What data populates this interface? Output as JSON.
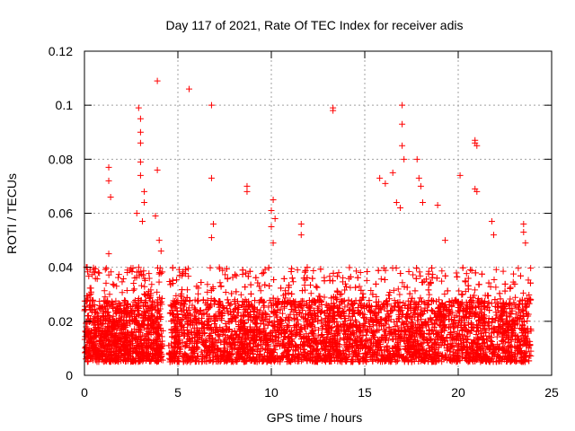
{
  "chart_data": {
    "type": "scatter",
    "title": "Day 117 of 2021, Rate Of TEC Index for receiver adis",
    "xlabel": "GPS time / hours",
    "ylabel": "ROTI / TECUs",
    "xlim": [
      0,
      25
    ],
    "ylim": [
      0,
      0.12
    ],
    "x_ticks": [
      0,
      5,
      10,
      15,
      20,
      25
    ],
    "x_tick_labels": [
      "0",
      "5",
      "10",
      "15",
      "20",
      "25"
    ],
    "y_ticks": [
      0,
      0.02,
      0.04,
      0.06,
      0.08,
      0.1,
      0.12
    ],
    "y_tick_labels": [
      "0",
      "0.02",
      "0.04",
      "0.06",
      "0.08",
      "0.1",
      "0.12"
    ],
    "grid": true,
    "marker": "+",
    "marker_color": "#ff0000",
    "series": [
      {
        "name": "ROTI",
        "note": "dense cloud of ~thousands of points; representative extreme/outlier points listed",
        "points": [
          [
            0.1,
            0.04
          ],
          [
            0.3,
            0.039
          ],
          [
            1.3,
            0.077
          ],
          [
            1.3,
            0.072
          ],
          [
            1.4,
            0.066
          ],
          [
            1.3,
            0.045
          ],
          [
            2.9,
            0.099
          ],
          [
            3.0,
            0.095
          ],
          [
            3.0,
            0.09
          ],
          [
            3.0,
            0.086
          ],
          [
            3.0,
            0.079
          ],
          [
            3.0,
            0.074
          ],
          [
            2.8,
            0.06
          ],
          [
            3.1,
            0.057
          ],
          [
            3.2,
            0.068
          ],
          [
            3.2,
            0.064
          ],
          [
            3.9,
            0.109
          ],
          [
            3.9,
            0.076
          ],
          [
            3.8,
            0.059
          ],
          [
            4.0,
            0.05
          ],
          [
            4.1,
            0.046
          ],
          [
            5.6,
            0.106
          ],
          [
            6.8,
            0.1
          ],
          [
            6.8,
            0.073
          ],
          [
            6.9,
            0.056
          ],
          [
            6.8,
            0.051
          ],
          [
            8.7,
            0.07
          ],
          [
            8.7,
            0.068
          ],
          [
            10.1,
            0.065
          ],
          [
            10.0,
            0.061
          ],
          [
            10.2,
            0.058
          ],
          [
            10.0,
            0.055
          ],
          [
            10.1,
            0.049
          ],
          [
            11.6,
            0.056
          ],
          [
            11.6,
            0.052
          ],
          [
            13.3,
            0.099
          ],
          [
            13.3,
            0.098
          ],
          [
            15.8,
            0.073
          ],
          [
            16.1,
            0.071
          ],
          [
            16.5,
            0.075
          ],
          [
            16.7,
            0.064
          ],
          [
            16.9,
            0.062
          ],
          [
            17.0,
            0.1
          ],
          [
            17.0,
            0.093
          ],
          [
            17.0,
            0.085
          ],
          [
            17.1,
            0.08
          ],
          [
            17.8,
            0.08
          ],
          [
            17.9,
            0.073
          ],
          [
            18.0,
            0.07
          ],
          [
            18.1,
            0.064
          ],
          [
            18.9,
            0.063
          ],
          [
            19.3,
            0.05
          ],
          [
            20.1,
            0.074
          ],
          [
            20.9,
            0.087
          ],
          [
            20.9,
            0.086
          ],
          [
            21.0,
            0.085
          ],
          [
            20.9,
            0.069
          ],
          [
            21.0,
            0.068
          ],
          [
            21.8,
            0.057
          ],
          [
            21.9,
            0.052
          ],
          [
            23.5,
            0.056
          ],
          [
            23.5,
            0.053
          ],
          [
            23.6,
            0.049
          ]
        ],
        "background_band": {
          "x_ranges": [
            [
              0,
              4.2
            ],
            [
              4.5,
              23.9
            ]
          ],
          "typical_min": 0.005,
          "typical_max": 0.028
        }
      }
    ]
  }
}
